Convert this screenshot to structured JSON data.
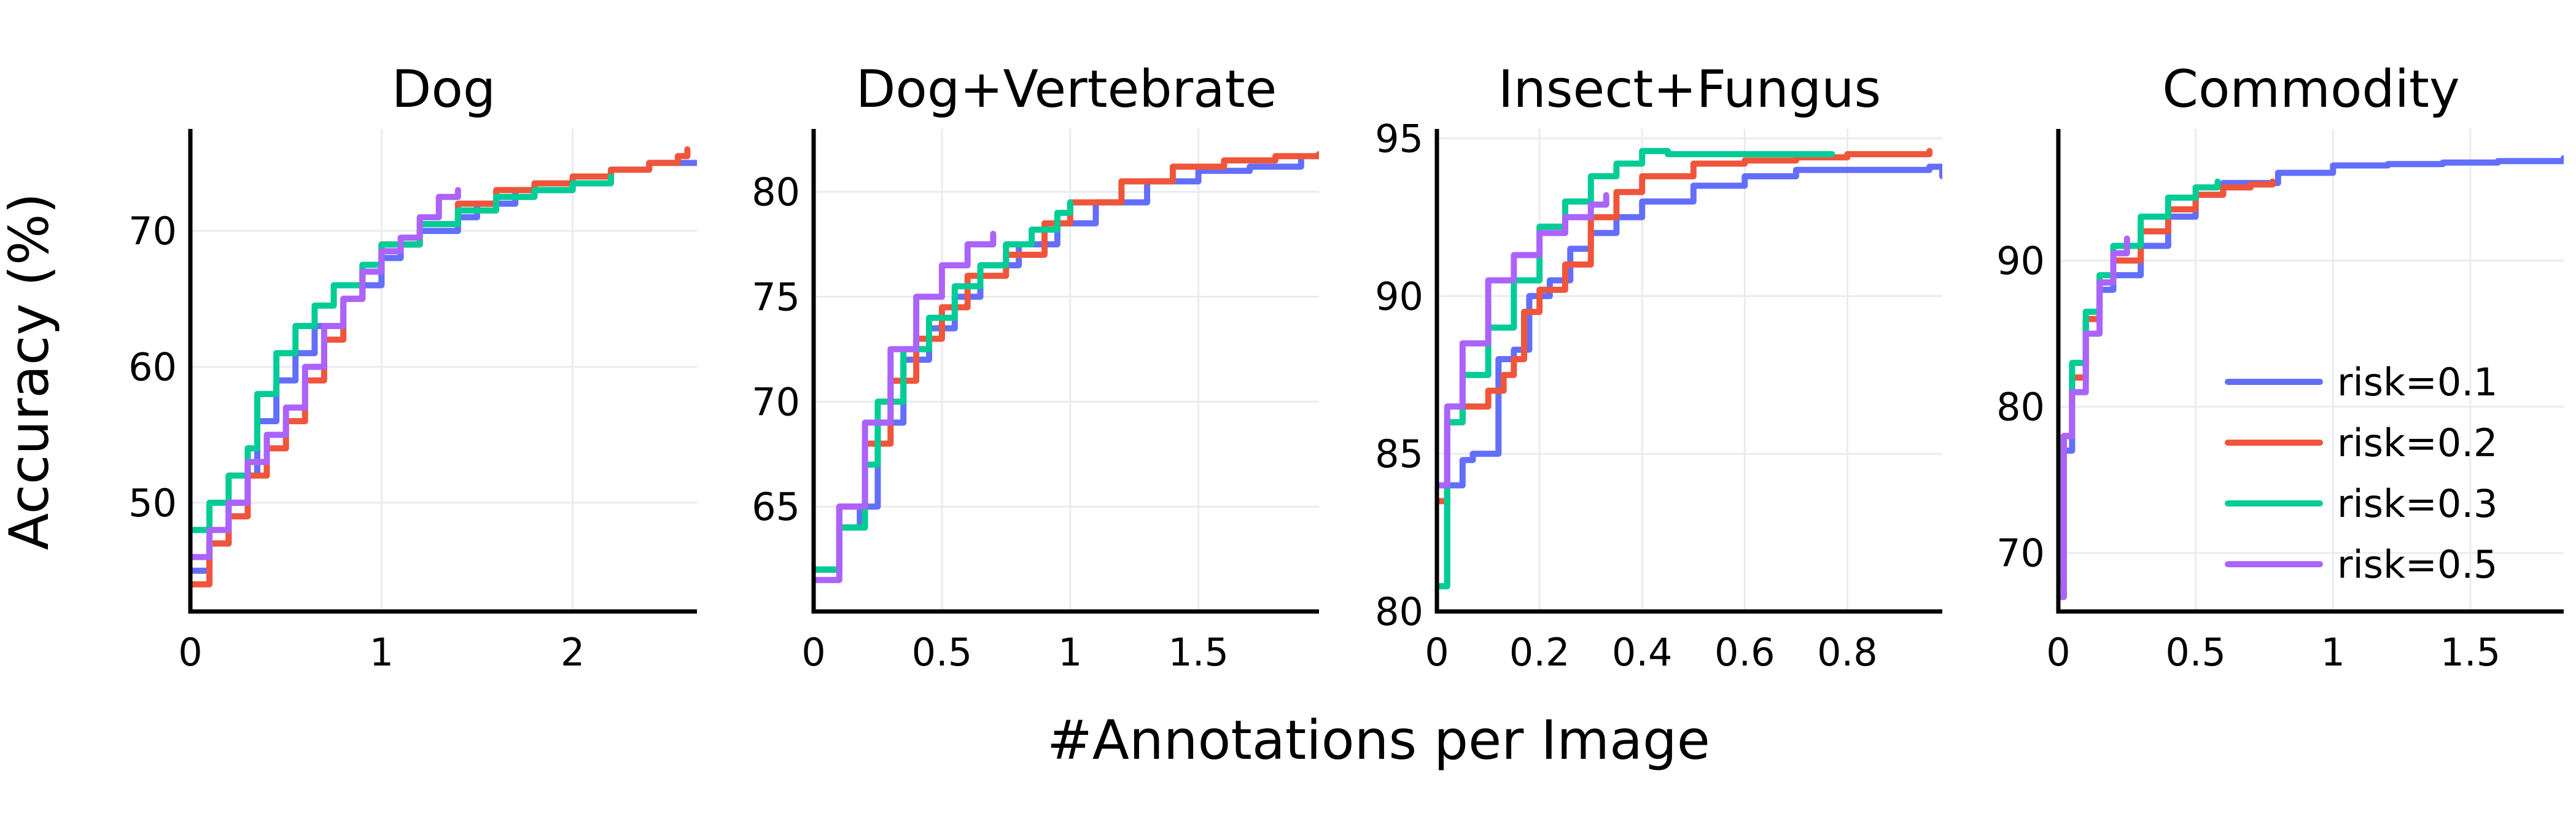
{
  "figure": {
    "xlabel": "#Annotations per Image",
    "ylabel": "Accuracy (%)"
  },
  "colors": {
    "risk=0.1": "#636efa",
    "risk=0.2": "#ef553b",
    "risk=0.3": "#00cc96",
    "risk=0.5": "#ab63fa"
  },
  "legend": {
    "placement": "bottom-right of last panel",
    "items": [
      "risk=0.1",
      "risk=0.2",
      "risk=0.3",
      "risk=0.5"
    ]
  },
  "chart_data": [
    {
      "type": "line",
      "title": "Dog",
      "xlim": [
        0,
        2.65
      ],
      "ylim": [
        42,
        77.5
      ],
      "xticks": [
        0,
        1,
        2
      ],
      "xtick_labels": [
        "0",
        "1",
        "2"
      ],
      "yticks": [
        50,
        60,
        70
      ],
      "ytick_labels": [
        "50",
        "60",
        "70"
      ],
      "grid": true,
      "series": [
        {
          "name": "risk=0.1",
          "x": [
            0,
            0.1,
            0.2,
            0.3,
            0.35,
            0.45,
            0.55,
            0.65,
            0.8,
            0.9,
            1.0,
            1.1,
            1.2,
            1.4,
            1.5,
            1.7,
            2.0,
            2.2,
            2.4,
            2.65
          ],
          "y": [
            45,
            47,
            50,
            52,
            56,
            59,
            61,
            63,
            65,
            66,
            68,
            69,
            70,
            71,
            72,
            73,
            74,
            74.5,
            75,
            75
          ]
        },
        {
          "name": "risk=0.2",
          "x": [
            0,
            0.1,
            0.2,
            0.3,
            0.4,
            0.5,
            0.6,
            0.7,
            0.8,
            0.9,
            1.0,
            1.2,
            1.4,
            1.6,
            1.8,
            2.0,
            2.2,
            2.4,
            2.55,
            2.6
          ],
          "y": [
            44,
            47,
            49,
            52,
            54,
            56,
            59,
            62,
            65,
            67,
            69,
            70.5,
            72,
            73,
            73.5,
            74,
            74.5,
            75,
            75.5,
            76
          ]
        },
        {
          "name": "risk=0.3",
          "x": [
            0,
            0.1,
            0.2,
            0.3,
            0.35,
            0.45,
            0.55,
            0.65,
            0.75,
            0.9,
            1.0,
            1.2,
            1.4,
            1.6,
            1.8,
            2.0,
            2.2
          ],
          "y": [
            48,
            50,
            52,
            54,
            58,
            61,
            63,
            64.5,
            66,
            67.5,
            69,
            70.5,
            71.5,
            72.5,
            73,
            73.5,
            74
          ]
        },
        {
          "name": "risk=0.5",
          "x": [
            0,
            0.1,
            0.2,
            0.3,
            0.4,
            0.5,
            0.6,
            0.7,
            0.8,
            0.9,
            1.0,
            1.1,
            1.2,
            1.3,
            1.4
          ],
          "y": [
            46,
            48,
            50,
            53,
            55,
            57,
            60,
            63,
            65,
            67,
            68.5,
            69.5,
            71,
            72.5,
            73
          ]
        }
      ]
    },
    {
      "type": "line",
      "title": "Dog+Vertebrate",
      "xlim": [
        0,
        1.97
      ],
      "ylim": [
        60,
        83
      ],
      "xticks": [
        0,
        0.5,
        1,
        1.5
      ],
      "xtick_labels": [
        "0",
        "0.5",
        "1",
        "1.5"
      ],
      "yticks": [
        65,
        70,
        75,
        80
      ],
      "ytick_labels": [
        "65",
        "70",
        "75",
        "80"
      ],
      "grid": true,
      "series": [
        {
          "name": "risk=0.1",
          "x": [
            0,
            0.1,
            0.18,
            0.25,
            0.35,
            0.45,
            0.55,
            0.65,
            0.8,
            0.95,
            1.1,
            1.3,
            1.5,
            1.7,
            1.9
          ],
          "y": [
            62,
            64,
            65,
            69,
            72,
            73.5,
            75,
            76.5,
            77.5,
            78.5,
            79.5,
            80.5,
            81,
            81.2,
            81.5
          ]
        },
        {
          "name": "risk=0.2",
          "x": [
            0,
            0.1,
            0.2,
            0.3,
            0.4,
            0.5,
            0.6,
            0.75,
            0.9,
            1.0,
            1.2,
            1.4,
            1.6,
            1.8,
            1.97
          ],
          "y": [
            62,
            65,
            68,
            71,
            73,
            74.5,
            76,
            77,
            78.5,
            79.5,
            80.5,
            81.2,
            81.5,
            81.7,
            81.8
          ]
        },
        {
          "name": "risk=0.3",
          "x": [
            0,
            0.1,
            0.2,
            0.25,
            0.35,
            0.45,
            0.55,
            0.65,
            0.75,
            0.85,
            0.95,
            1.0
          ],
          "y": [
            62,
            64,
            67,
            70,
            72.5,
            74,
            75.5,
            76.5,
            77.5,
            78.2,
            79,
            79.5
          ]
        },
        {
          "name": "risk=0.5",
          "x": [
            0,
            0.1,
            0.2,
            0.3,
            0.4,
            0.5,
            0.6,
            0.7
          ],
          "y": [
            61.5,
            65,
            69,
            72.5,
            75,
            76.5,
            77.5,
            78
          ]
        }
      ]
    },
    {
      "type": "line",
      "title": "Insect+Fungus",
      "xlim": [
        0,
        0.985
      ],
      "ylim": [
        80,
        95.3
      ],
      "xticks": [
        0,
        0.2,
        0.4,
        0.6,
        0.8
      ],
      "xtick_labels": [
        "0",
        "0.2",
        "0.4",
        "0.6",
        "0.8"
      ],
      "yticks": [
        80,
        85,
        90,
        95
      ],
      "ytick_labels": [
        "80",
        "85",
        "90",
        "95"
      ],
      "grid": true,
      "series": [
        {
          "name": "risk=0.1",
          "x": [
            0,
            0.02,
            0.05,
            0.07,
            0.1,
            0.12,
            0.15,
            0.18,
            0.22,
            0.26,
            0.3,
            0.35,
            0.4,
            0.5,
            0.6,
            0.7,
            0.8,
            0.9,
            0.96,
            0.985
          ],
          "y": [
            80.8,
            84,
            84.8,
            85,
            85,
            88,
            88.3,
            90,
            90.5,
            91.5,
            92,
            92.5,
            93,
            93.5,
            93.8,
            94,
            94,
            94,
            94.1,
            93.8
          ]
        },
        {
          "name": "risk=0.2",
          "x": [
            0,
            0.02,
            0.05,
            0.1,
            0.13,
            0.15,
            0.17,
            0.2,
            0.25,
            0.3,
            0.35,
            0.4,
            0.5,
            0.6,
            0.7,
            0.8,
            0.9,
            0.96
          ],
          "y": [
            83.5,
            86,
            86.5,
            87,
            87.5,
            88,
            89.5,
            90.2,
            91,
            92.5,
            93.3,
            93.8,
            94.2,
            94.3,
            94.4,
            94.5,
            94.5,
            94.6
          ]
        },
        {
          "name": "risk=0.3",
          "x": [
            0,
            0.02,
            0.05,
            0.1,
            0.15,
            0.2,
            0.25,
            0.3,
            0.35,
            0.4,
            0.45,
            0.5,
            0.6,
            0.7,
            0.77
          ],
          "y": [
            80.8,
            86,
            87.5,
            89,
            90.5,
            92.2,
            93,
            93.8,
            94.2,
            94.6,
            94.5,
            94.5,
            94.5,
            94.5,
            94.5
          ]
        },
        {
          "name": "risk=0.5",
          "x": [
            0,
            0.02,
            0.05,
            0.1,
            0.15,
            0.2,
            0.25,
            0.3,
            0.33
          ],
          "y": [
            84,
            86.5,
            88.5,
            90.5,
            91.3,
            92,
            92.5,
            92.9,
            93.2
          ]
        }
      ]
    },
    {
      "type": "line",
      "title": "Commodity",
      "xlim": [
        0,
        1.84
      ],
      "ylim": [
        66,
        99
      ],
      "xticks": [
        0,
        0.5,
        1,
        1.5
      ],
      "xtick_labels": [
        "0",
        "0.5",
        "1",
        "1.5"
      ],
      "yticks": [
        70,
        80,
        90
      ],
      "ytick_labels": [
        "70",
        "80",
        "90"
      ],
      "grid": true,
      "series": [
        {
          "name": "risk=0.1",
          "x": [
            0,
            0.02,
            0.05,
            0.1,
            0.15,
            0.2,
            0.3,
            0.4,
            0.5,
            0.6,
            0.8,
            1.0,
            1.2,
            1.4,
            1.6,
            1.84
          ],
          "y": [
            68,
            77,
            82,
            86,
            88,
            89,
            91,
            93,
            94.5,
            95.3,
            96,
            96.5,
            96.6,
            96.7,
            96.8,
            97
          ]
        },
        {
          "name": "risk=0.2",
          "x": [
            0,
            0.02,
            0.05,
            0.1,
            0.15,
            0.2,
            0.3,
            0.4,
            0.5,
            0.6,
            0.7,
            0.78
          ],
          "y": [
            67,
            78,
            82,
            86,
            88.5,
            90,
            92,
            93.5,
            94.5,
            95,
            95.2,
            95.4
          ]
        },
        {
          "name": "risk=0.3",
          "x": [
            0,
            0.02,
            0.05,
            0.1,
            0.15,
            0.2,
            0.3,
            0.4,
            0.5,
            0.58
          ],
          "y": [
            68,
            78,
            83,
            86.5,
            89,
            91,
            93,
            94.3,
            95,
            95.4
          ]
        },
        {
          "name": "risk=0.5",
          "x": [
            0,
            0.02,
            0.05,
            0.1,
            0.15,
            0.2,
            0.25
          ],
          "y": [
            67,
            78,
            81,
            85,
            88.5,
            90.5,
            91.5
          ]
        }
      ]
    }
  ]
}
